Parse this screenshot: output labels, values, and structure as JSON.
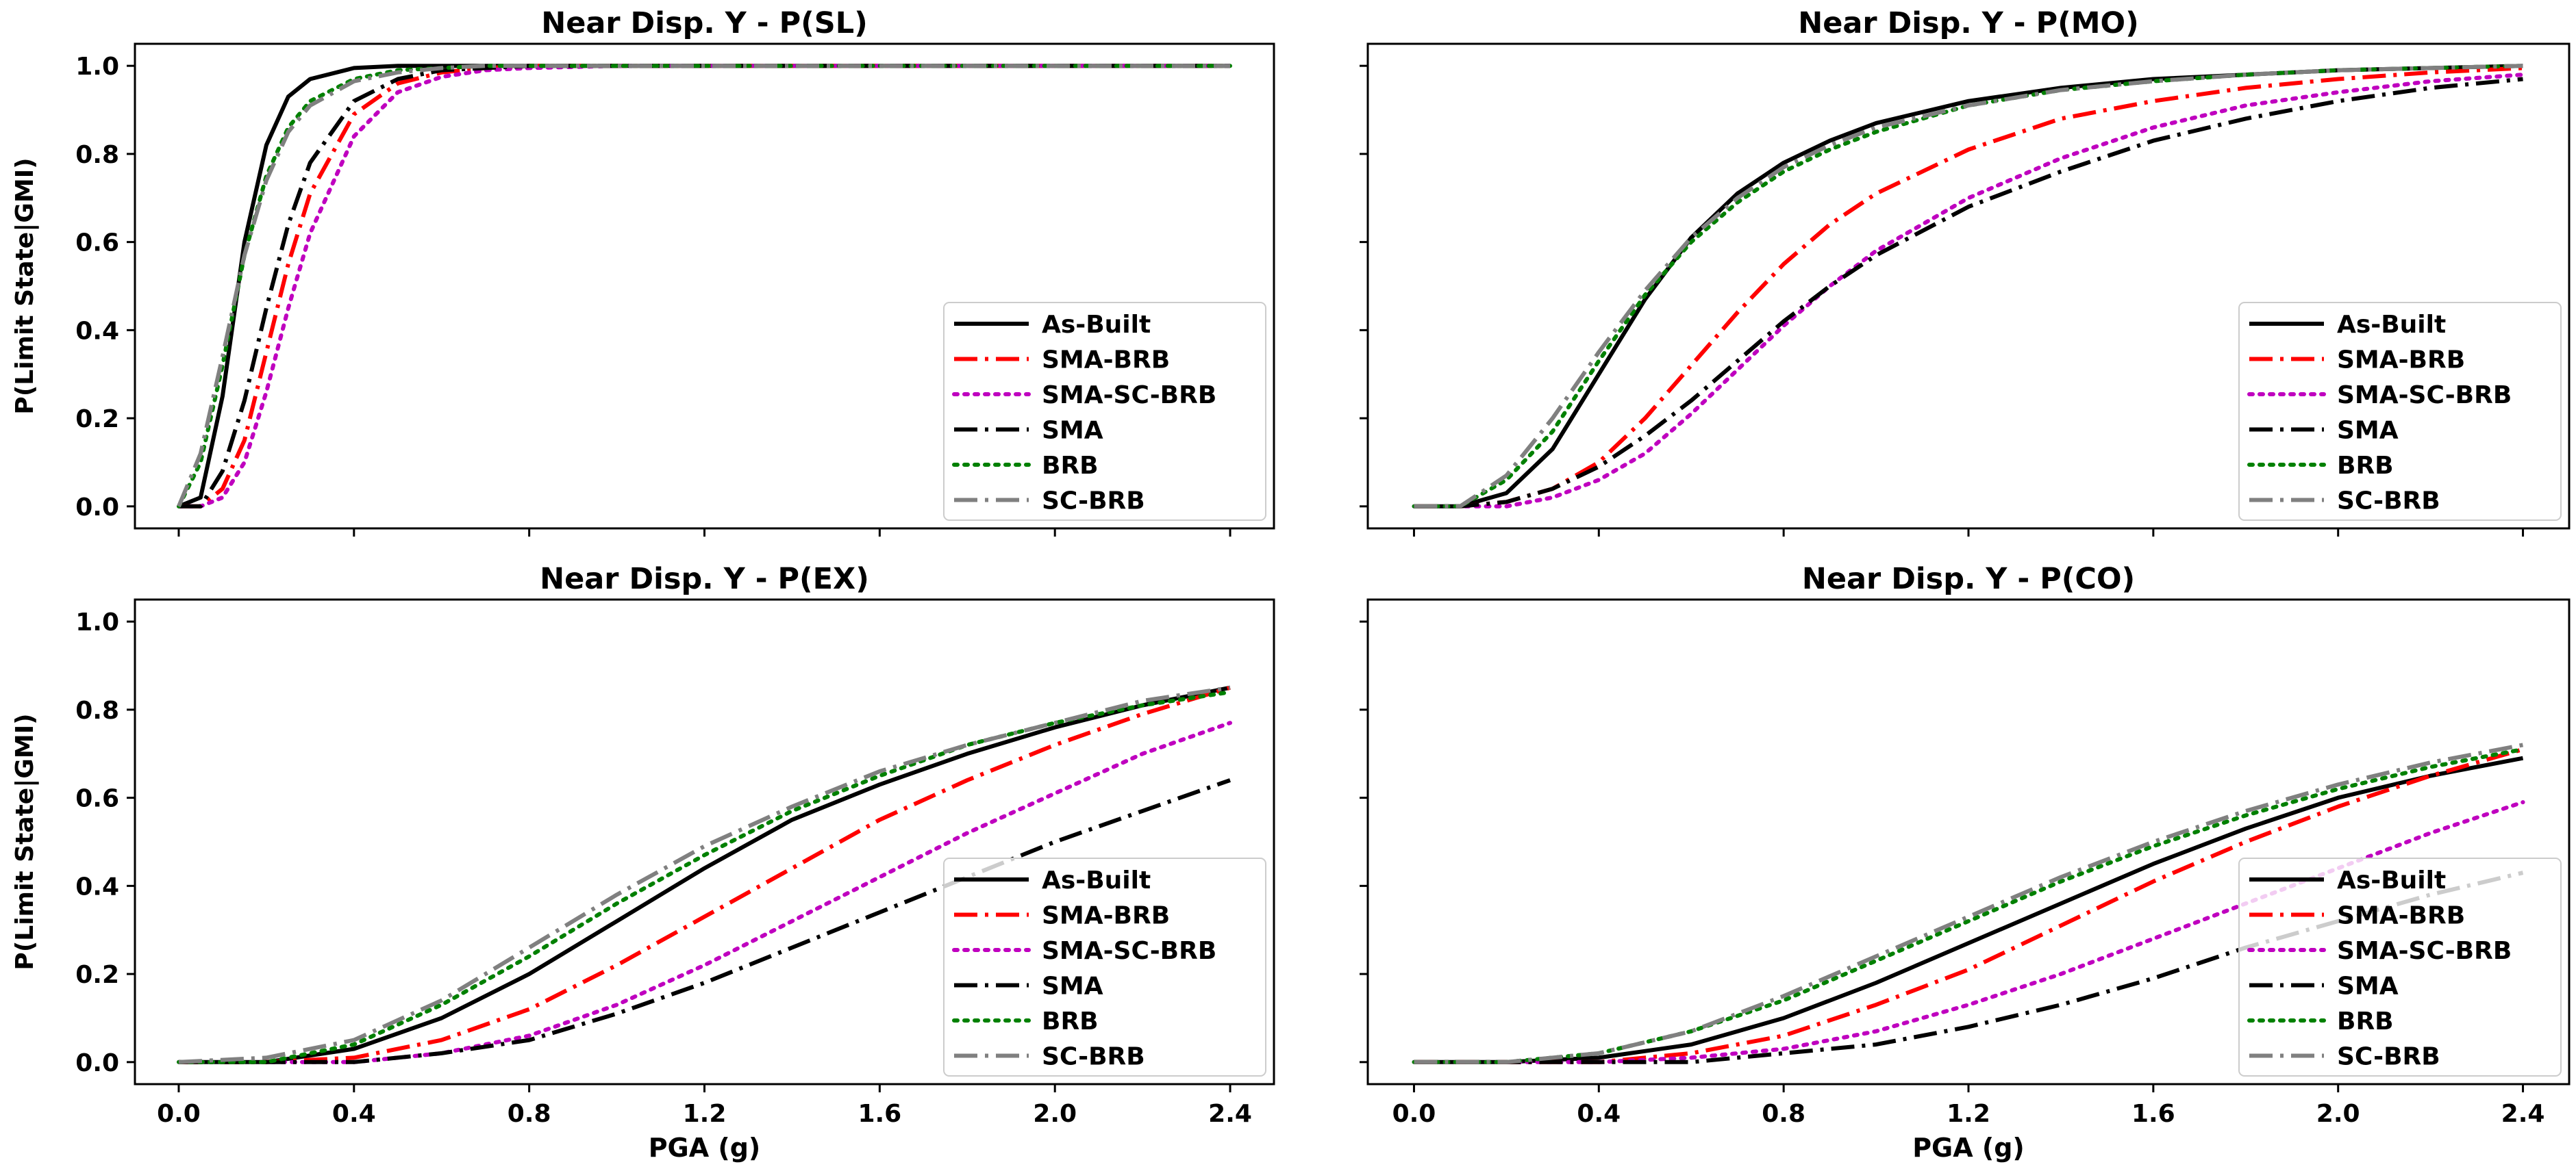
{
  "chart_data": {
    "type": "line",
    "shared": {
      "xlabel": "PGA (g)",
      "ylabel": "P(Limit State|GMI)",
      "xlim": [
        -0.1,
        2.5
      ],
      "ylim": [
        -0.05,
        1.05
      ],
      "xticks": [
        0.0,
        0.4,
        0.8,
        1.2,
        1.6,
        2.0,
        2.4
      ],
      "xtick_labels": [
        "0.0",
        "0.4",
        "0.8",
        "1.2",
        "1.6",
        "2.0",
        "2.4"
      ],
      "yticks": [
        0.0,
        0.2,
        0.4,
        0.6,
        0.8,
        1.0
      ],
      "ytick_labels": [
        "0.0",
        "0.2",
        "0.4",
        "0.6",
        "0.8",
        "1.0"
      ],
      "legend_position": "bottom-right",
      "series_styles": [
        {
          "name": "As-Built",
          "color": "#000000",
          "dash": "solid"
        },
        {
          "name": "SMA-BRB",
          "color": "#ff0000",
          "dash": "dashdot"
        },
        {
          "name": "SMA-SC-BRB",
          "color": "#bf00bf",
          "dash": "dotted"
        },
        {
          "name": "SMA",
          "color": "#000000",
          "dash": "dashdot"
        },
        {
          "name": "BRB",
          "color": "#008000",
          "dash": "dotted"
        },
        {
          "name": "SC-BRB",
          "color": "#808080",
          "dash": "dashdot"
        }
      ]
    },
    "panels": [
      {
        "title": "Near Disp. Y - P(SL)",
        "x": [
          0.0,
          0.05,
          0.1,
          0.15,
          0.2,
          0.25,
          0.3,
          0.4,
          0.5,
          0.6,
          0.7,
          0.8,
          1.0,
          1.2,
          1.6,
          2.0,
          2.4
        ],
        "series": [
          {
            "name": "As-Built",
            "values": [
              0.0,
              0.02,
              0.25,
              0.6,
              0.82,
              0.93,
              0.97,
              0.995,
              1.0,
              1.0,
              1.0,
              1.0,
              1.0,
              1.0,
              1.0,
              1.0,
              1.0
            ]
          },
          {
            "name": "SMA-BRB",
            "values": [
              0.0,
              0.0,
              0.04,
              0.15,
              0.35,
              0.55,
              0.71,
              0.89,
              0.96,
              0.985,
              0.995,
              1.0,
              1.0,
              1.0,
              1.0,
              1.0,
              1.0
            ]
          },
          {
            "name": "SMA-SC-BRB",
            "values": [
              0.0,
              0.0,
              0.02,
              0.1,
              0.26,
              0.45,
              0.62,
              0.84,
              0.94,
              0.975,
              0.99,
              0.995,
              1.0,
              1.0,
              1.0,
              1.0,
              1.0
            ]
          },
          {
            "name": "SMA",
            "values": [
              0.0,
              0.0,
              0.08,
              0.24,
              0.45,
              0.64,
              0.78,
              0.92,
              0.97,
              0.99,
              0.995,
              1.0,
              1.0,
              1.0,
              1.0,
              1.0,
              1.0
            ]
          },
          {
            "name": "BRB",
            "values": [
              0.0,
              0.1,
              0.32,
              0.57,
              0.75,
              0.86,
              0.92,
              0.97,
              0.99,
              0.995,
              1.0,
              1.0,
              1.0,
              1.0,
              1.0,
              1.0,
              1.0
            ]
          },
          {
            "name": "SC-BRB",
            "values": [
              0.0,
              0.12,
              0.34,
              0.57,
              0.74,
              0.85,
              0.91,
              0.965,
              0.985,
              0.995,
              1.0,
              1.0,
              1.0,
              1.0,
              1.0,
              1.0,
              1.0
            ]
          }
        ]
      },
      {
        "title": "Near Disp. Y - P(MO)",
        "x": [
          0.0,
          0.1,
          0.2,
          0.3,
          0.4,
          0.5,
          0.6,
          0.7,
          0.8,
          0.9,
          1.0,
          1.2,
          1.4,
          1.6,
          1.8,
          2.0,
          2.2,
          2.4
        ],
        "series": [
          {
            "name": "As-Built",
            "values": [
              0.0,
              0.0,
              0.03,
              0.13,
              0.3,
              0.47,
              0.61,
              0.71,
              0.78,
              0.83,
              0.87,
              0.92,
              0.95,
              0.97,
              0.98,
              0.99,
              0.995,
              1.0
            ]
          },
          {
            "name": "SMA-BRB",
            "values": [
              0.0,
              0.0,
              0.01,
              0.04,
              0.1,
              0.2,
              0.32,
              0.44,
              0.55,
              0.64,
              0.71,
              0.81,
              0.88,
              0.92,
              0.95,
              0.97,
              0.985,
              0.995
            ]
          },
          {
            "name": "SMA-SC-BRB",
            "values": [
              0.0,
              0.0,
              0.0,
              0.02,
              0.06,
              0.12,
              0.21,
              0.31,
              0.41,
              0.5,
              0.58,
              0.7,
              0.79,
              0.86,
              0.91,
              0.94,
              0.965,
              0.98
            ]
          },
          {
            "name": "SMA",
            "values": [
              0.0,
              0.0,
              0.01,
              0.04,
              0.09,
              0.16,
              0.24,
              0.33,
              0.42,
              0.5,
              0.57,
              0.68,
              0.76,
              0.83,
              0.88,
              0.92,
              0.95,
              0.97
            ]
          },
          {
            "name": "BRB",
            "values": [
              0.0,
              0.0,
              0.06,
              0.17,
              0.33,
              0.48,
              0.6,
              0.69,
              0.76,
              0.81,
              0.85,
              0.91,
              0.945,
              0.965,
              0.98,
              0.99,
              0.995,
              1.0
            ]
          },
          {
            "name": "SC-BRB",
            "values": [
              0.0,
              0.0,
              0.07,
              0.2,
              0.35,
              0.49,
              0.61,
              0.7,
              0.77,
              0.82,
              0.86,
              0.91,
              0.945,
              0.965,
              0.98,
              0.99,
              0.995,
              1.0
            ]
          }
        ]
      },
      {
        "title": "Near Disp. Y - P(EX)",
        "x": [
          0.0,
          0.2,
          0.4,
          0.6,
          0.8,
          1.0,
          1.2,
          1.4,
          1.6,
          1.8,
          2.0,
          2.2,
          2.4
        ],
        "series": [
          {
            "name": "As-Built",
            "values": [
              0.0,
              0.0,
              0.03,
              0.1,
              0.2,
              0.32,
              0.44,
              0.55,
              0.63,
              0.7,
              0.76,
              0.81,
              0.85
            ]
          },
          {
            "name": "SMA-BRB",
            "values": [
              0.0,
              0.0,
              0.01,
              0.05,
              0.12,
              0.22,
              0.33,
              0.44,
              0.55,
              0.64,
              0.72,
              0.79,
              0.85
            ]
          },
          {
            "name": "SMA-SC-BRB",
            "values": [
              0.0,
              0.0,
              0.0,
              0.02,
              0.06,
              0.13,
              0.22,
              0.32,
              0.42,
              0.52,
              0.61,
              0.7,
              0.77
            ]
          },
          {
            "name": "SMA",
            "values": [
              0.0,
              0.0,
              0.0,
              0.02,
              0.05,
              0.11,
              0.18,
              0.26,
              0.34,
              0.42,
              0.5,
              0.57,
              0.64
            ]
          },
          {
            "name": "BRB",
            "values": [
              0.0,
              0.0,
              0.04,
              0.13,
              0.24,
              0.36,
              0.47,
              0.57,
              0.65,
              0.72,
              0.77,
              0.81,
              0.84
            ]
          },
          {
            "name": "SC-BRB",
            "values": [
              0.0,
              0.01,
              0.05,
              0.14,
              0.26,
              0.38,
              0.49,
              0.58,
              0.66,
              0.72,
              0.77,
              0.82,
              0.85
            ]
          }
        ]
      },
      {
        "title": "Near Disp. Y - P(CO)",
        "x": [
          0.0,
          0.2,
          0.4,
          0.6,
          0.8,
          1.0,
          1.2,
          1.4,
          1.6,
          1.8,
          2.0,
          2.2,
          2.4
        ],
        "series": [
          {
            "name": "As-Built",
            "values": [
              0.0,
              0.0,
              0.01,
              0.04,
              0.1,
              0.18,
              0.27,
              0.36,
              0.45,
              0.53,
              0.6,
              0.65,
              0.69
            ]
          },
          {
            "name": "SMA-BRB",
            "values": [
              0.0,
              0.0,
              0.0,
              0.02,
              0.06,
              0.13,
              0.21,
              0.31,
              0.41,
              0.5,
              0.58,
              0.65,
              0.71
            ]
          },
          {
            "name": "SMA-SC-BRB",
            "values": [
              0.0,
              0.0,
              0.0,
              0.01,
              0.03,
              0.07,
              0.13,
              0.2,
              0.28,
              0.36,
              0.44,
              0.52,
              0.59
            ]
          },
          {
            "name": "SMA",
            "values": [
              0.0,
              0.0,
              0.0,
              0.0,
              0.02,
              0.04,
              0.08,
              0.13,
              0.19,
              0.26,
              0.32,
              0.38,
              0.43
            ]
          },
          {
            "name": "BRB",
            "values": [
              0.0,
              0.0,
              0.02,
              0.07,
              0.14,
              0.23,
              0.32,
              0.41,
              0.49,
              0.56,
              0.62,
              0.67,
              0.71
            ]
          },
          {
            "name": "SC-BRB",
            "values": [
              0.0,
              0.0,
              0.02,
              0.07,
              0.15,
              0.24,
              0.33,
              0.42,
              0.5,
              0.57,
              0.63,
              0.68,
              0.72
            ]
          }
        ]
      }
    ]
  }
}
